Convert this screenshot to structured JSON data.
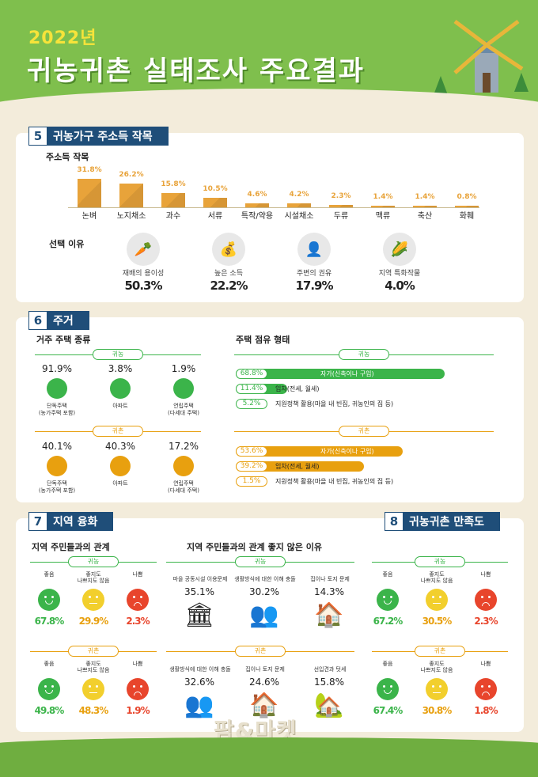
{
  "header": {
    "year": "2022년",
    "title": "귀농귀촌 실태조사 주요결과"
  },
  "sec5": {
    "num": "5",
    "title": "귀농가구 주소득 작목",
    "crop_label": "주소득 작목",
    "reason_label": "선택 이유",
    "chart_data": {
      "type": "bar",
      "categories": [
        "논벼",
        "노지채소",
        "과수",
        "서류",
        "특작/약용",
        "시설채소",
        "두류",
        "맥류",
        "축산",
        "화훼"
      ],
      "values": [
        31.8,
        26.2,
        15.8,
        10.5,
        4.6,
        4.2,
        2.3,
        1.4,
        1.4,
        0.8
      ],
      "value_labels": [
        "31.8%",
        "26.2%",
        "15.8%",
        "10.5%",
        "4.6%",
        "4.2%",
        "2.3%",
        "1.4%",
        "1.4%",
        "0.8%"
      ]
    },
    "reasons": [
      {
        "label": "재배의 용이성",
        "value": "50.3%",
        "icon": "carrot-icon"
      },
      {
        "label": "높은 소득",
        "value": "22.2%",
        "icon": "coins-up-icon"
      },
      {
        "label": "주변의 권유",
        "value": "17.9%",
        "icon": "person-talk-icon"
      },
      {
        "label": "지역 특화작물",
        "value": "4.0%",
        "icon": "corn-icon"
      }
    ]
  },
  "sec6": {
    "num": "6",
    "title": "주거",
    "type_label": "거주 주택 종류",
    "tenure_label": "주택 점유 형태",
    "gwinong": "귀농",
    "gwichon": "귀촌",
    "types_nong": [
      {
        "pct": "91.9%",
        "label": "단독주택\n(농가주택 포함)",
        "icon": "house-icon"
      },
      {
        "pct": "3.8%",
        "label": "아파트",
        "icon": "apartment-icon"
      },
      {
        "pct": "1.9%",
        "label": "연립주택\n(다세대 주택)",
        "icon": "rowhouse-icon"
      }
    ],
    "types_chon": [
      {
        "pct": "40.1%",
        "label": "단독주택\n(농가주택 포함)",
        "icon": "house-icon"
      },
      {
        "pct": "40.3%",
        "label": "아파트",
        "icon": "apartment-icon"
      },
      {
        "pct": "17.2%",
        "label": "연립주택\n(다세대 주택)",
        "icon": "rowhouse-icon"
      }
    ],
    "tenure_nong": [
      {
        "pct": "68.8%",
        "value": 68.8,
        "label": "자가(신축이나 구입)"
      },
      {
        "pct": "11.4%",
        "value": 11.4,
        "label": "임차(전세, 월세)"
      },
      {
        "pct": "5.2%",
        "value": 5.2,
        "label": "지원정책 활용(마을 내 빈집, 귀농인의 집 등)"
      }
    ],
    "tenure_chon": [
      {
        "pct": "53.6%",
        "value": 53.6,
        "label": "자가(신축이나 구입)"
      },
      {
        "pct": "39.2%",
        "value": 39.2,
        "label": "임차(전세, 월세)"
      },
      {
        "pct": "1.5%",
        "value": 1.5,
        "label": "지원정책 활용(마을 내 빈집, 귀농인의 집 등)"
      }
    ]
  },
  "sec7": {
    "num": "7",
    "title": "지역 융화",
    "rel_label": "지역 주민들과의 관계",
    "bad_label": "지역 주민들과의 관계 좋지 않은 이유",
    "gwinong": "귀농",
    "gwichon": "귀촌",
    "rel_nong": [
      {
        "label": "좋음",
        "value": "67.8%"
      },
      {
        "label": "좋지도\n나쁘지도 않음",
        "value": "29.9%"
      },
      {
        "label": "나쁨",
        "value": "2.3%"
      }
    ],
    "rel_chon": [
      {
        "label": "좋음",
        "value": "49.8%"
      },
      {
        "label": "좋지도\n나쁘지도 않음",
        "value": "48.3%"
      },
      {
        "label": "나쁨",
        "value": "1.9%"
      }
    ],
    "reasons_nong": [
      {
        "label": "마을 공동시설 이용문제",
        "pct": "35.1%",
        "icon": "hall-icon"
      },
      {
        "label": "생활방식에 대한 이해 충돌",
        "pct": "30.2%",
        "icon": "argue-icon"
      },
      {
        "label": "집이나 토지 문제",
        "pct": "14.3%",
        "icon": "house-icon"
      }
    ],
    "reasons_chon": [
      {
        "label": "생활방식에 대한 이해 충돌",
        "pct": "32.6%",
        "icon": "argue-icon"
      },
      {
        "label": "집이나 토지 문제",
        "pct": "24.6%",
        "icon": "house-icon"
      },
      {
        "label": "선입견과 텃세",
        "pct": "15.8%",
        "icon": "house-point-icon"
      }
    ]
  },
  "sec8": {
    "num": "8",
    "title": "귀농귀촌 만족도",
    "gwinong": "귀농",
    "gwichon": "귀촌",
    "sat_nong": [
      {
        "label": "좋음",
        "value": "67.2%"
      },
      {
        "label": "좋지도\n나쁘지도 않음",
        "value": "30.5%"
      },
      {
        "label": "나쁨",
        "value": "2.3%"
      }
    ],
    "sat_chon": [
      {
        "label": "좋음",
        "value": "67.4%"
      },
      {
        "label": "좋지도\n나쁘지도 않음",
        "value": "30.8%"
      },
      {
        "label": "나쁨",
        "value": "1.8%"
      }
    ]
  },
  "footer": {
    "logo": "팜&마켓"
  },
  "colors": {
    "nong": "#3bb44a",
    "chon": "#e8a00f",
    "navy": "#1f4e79",
    "good": "#3bb44a",
    "mid": "#f2cf2d",
    "bad": "#e8452c"
  }
}
